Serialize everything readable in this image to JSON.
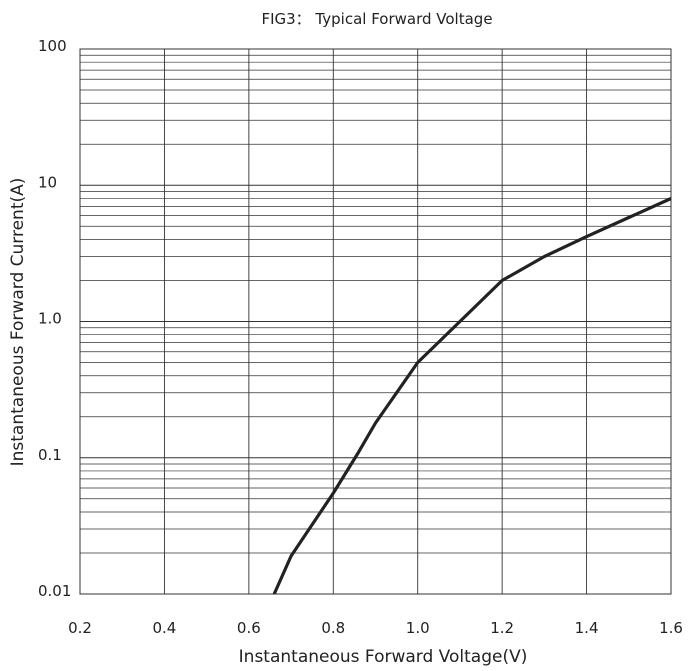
{
  "chart_data": {
    "type": "line",
    "title": "FIG3： Typical Forward Voltage",
    "xlabel": "Instantaneous Forward Voltage(V)",
    "ylabel": "Instantaneous Forward Current(A)",
    "xlim": [
      0.2,
      1.6
    ],
    "ylim": [
      0.01,
      100
    ],
    "yscale": "log",
    "grid": true,
    "x_ticks": [
      0.2,
      0.4,
      0.6,
      0.8,
      1.0,
      1.2,
      1.4,
      1.6
    ],
    "x_tick_labels": [
      "0.2",
      "0.4",
      "0.6",
      "0.8",
      "1.0",
      "1.2",
      "1.4",
      "1.6"
    ],
    "y_ticks": [
      0.01,
      0.1,
      1.0,
      10,
      100
    ],
    "y_tick_labels": [
      "0.01",
      "0.1",
      "1.0",
      "10",
      "100"
    ],
    "series": [
      {
        "x": [
          0.66,
          0.7,
          0.8,
          0.86,
          0.9,
          1.0,
          1.1,
          1.2,
          1.3,
          1.4,
          1.5,
          1.6
        ],
        "y": [
          0.01,
          0.019,
          0.055,
          0.11,
          0.18,
          0.5,
          1.0,
          2.0,
          3.0,
          4.2,
          5.8,
          8.0
        ]
      }
    ]
  }
}
